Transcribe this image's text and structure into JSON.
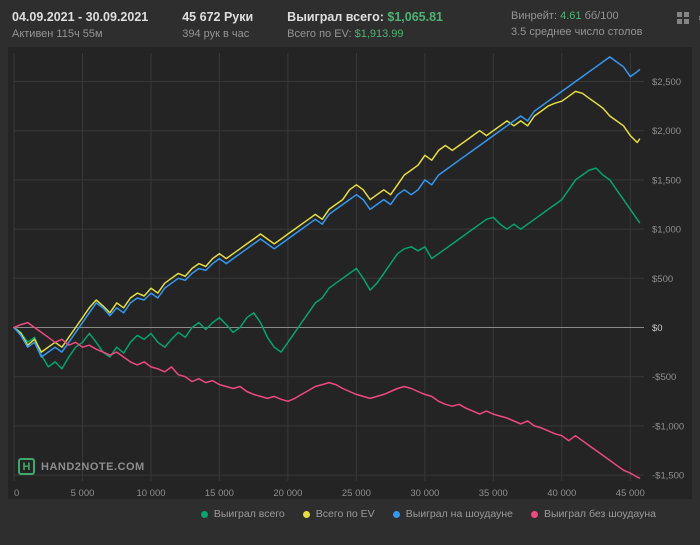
{
  "header": {
    "date_range": "04.09.2021 - 30.09.2021",
    "active_time": "Активен 115ч 55м",
    "hands": "45 672 Руки",
    "hands_per_hour": "394 рук в час",
    "won_label": "Выиграл всего:",
    "won_value": "$1,065.81",
    "ev_label": "Всего по EV:",
    "ev_value": "$1,913.99",
    "winrate_label": "Винрейт:",
    "winrate_value": "4.61",
    "winrate_unit": "бб/100",
    "avg_tables": "3.5 среднее число столов"
  },
  "icons": {
    "gear_glyph": "⚙"
  },
  "footer": {
    "logo_text": "HAND2NOTE.COM"
  },
  "colors": {
    "header_bg": "#2e2e2e",
    "chart_bg": "#242424",
    "accent_green": "#4db374"
  },
  "chart_data": {
    "type": "line",
    "title": "",
    "xlabel": "",
    "ylabel": "",
    "legend_position": "bottom",
    "grid": true,
    "grid_color": "#383838",
    "zero_line_color": "#8a8a8a",
    "xlim": [
      0,
      46000
    ],
    "ylim": [
      -1560,
      2790
    ],
    "x_ticks": [
      {
        "value": 0,
        "label": "0"
      },
      {
        "value": 5000,
        "label": "5 000"
      },
      {
        "value": 10000,
        "label": "10 000"
      },
      {
        "value": 15000,
        "label": "15 000"
      },
      {
        "value": 20000,
        "label": "20 000"
      },
      {
        "value": 25000,
        "label": "25 000"
      },
      {
        "value": 30000,
        "label": "30 000"
      },
      {
        "value": 35000,
        "label": "35 000"
      },
      {
        "value": 40000,
        "label": "40 000"
      },
      {
        "value": 45000,
        "label": "45 000"
      }
    ],
    "y_ticks": [
      {
        "value": 2500,
        "label": "$2,500"
      },
      {
        "value": 2000,
        "label": "$2,000"
      },
      {
        "value": 1500,
        "label": "$1,500"
      },
      {
        "value": 1000,
        "label": "$1,000"
      },
      {
        "value": 500,
        "label": "$500"
      },
      {
        "value": 0,
        "label": "$0"
      },
      {
        "value": -500,
        "label": "-$500"
      },
      {
        "value": -1000,
        "label": "-$1,000"
      },
      {
        "value": -1500,
        "label": "-$1,500"
      }
    ],
    "x": [
      0,
      500,
      1000,
      1500,
      2000,
      2500,
      3000,
      3500,
      4000,
      4500,
      5000,
      5500,
      6000,
      6500,
      7000,
      7500,
      8000,
      8500,
      9000,
      9500,
      10000,
      10500,
      11000,
      11500,
      12000,
      12500,
      13000,
      13500,
      14000,
      14500,
      15000,
      15500,
      16000,
      16500,
      17000,
      17500,
      18000,
      18500,
      19000,
      19500,
      20000,
      20500,
      21000,
      21500,
      22000,
      22500,
      23000,
      23500,
      24000,
      24500,
      25000,
      25500,
      26000,
      26500,
      27000,
      27500,
      28000,
      28500,
      29000,
      29500,
      30000,
      30500,
      31000,
      31500,
      32000,
      32500,
      33000,
      33500,
      34000,
      34500,
      35000,
      35500,
      36000,
      36500,
      37000,
      37500,
      38000,
      38500,
      39000,
      39500,
      40000,
      40500,
      41000,
      41500,
      42000,
      42500,
      43000,
      43500,
      44000,
      44500,
      45000,
      45500,
      45672
    ],
    "series": [
      {
        "name": "Выиграл всего",
        "color": "#00a56e",
        "final_value": 1065.81,
        "values": [
          0,
          -50,
          -150,
          -100,
          -280,
          -400,
          -350,
          -420,
          -300,
          -200,
          -150,
          -60,
          -150,
          -250,
          -300,
          -200,
          -260,
          -150,
          -80,
          -120,
          -60,
          -150,
          -200,
          -120,
          -50,
          -100,
          0,
          50,
          -20,
          50,
          100,
          30,
          -50,
          0,
          100,
          150,
          50,
          -100,
          -200,
          -250,
          -150,
          -50,
          50,
          150,
          250,
          300,
          400,
          450,
          500,
          550,
          600,
          500,
          380,
          450,
          550,
          650,
          750,
          800,
          820,
          780,
          820,
          700,
          750,
          800,
          850,
          900,
          950,
          1000,
          1050,
          1100,
          1120,
          1050,
          1000,
          1050,
          1000,
          1050,
          1100,
          1150,
          1200,
          1250,
          1300,
          1400,
          1500,
          1550,
          1600,
          1620,
          1550,
          1500,
          1400,
          1300,
          1200,
          1100,
          1066
        ]
      },
      {
        "name": "Всего по EV",
        "color": "#e3df3c",
        "final_value": 1913.99,
        "values": [
          0,
          -60,
          -180,
          -120,
          -250,
          -200,
          -150,
          -200,
          -100,
          0,
          100,
          200,
          280,
          220,
          150,
          250,
          200,
          300,
          350,
          320,
          400,
          350,
          450,
          500,
          550,
          520,
          600,
          650,
          620,
          700,
          750,
          700,
          750,
          800,
          850,
          900,
          950,
          900,
          850,
          900,
          950,
          1000,
          1050,
          1100,
          1150,
          1100,
          1200,
          1250,
          1300,
          1400,
          1450,
          1400,
          1300,
          1350,
          1400,
          1350,
          1450,
          1550,
          1600,
          1650,
          1750,
          1700,
          1800,
          1850,
          1800,
          1850,
          1900,
          1950,
          2000,
          1950,
          2000,
          2050,
          2100,
          2050,
          2100,
          2050,
          2150,
          2200,
          2250,
          2280,
          2300,
          2350,
          2400,
          2380,
          2330,
          2280,
          2230,
          2150,
          2100,
          2050,
          1950,
          1880,
          1914
        ]
      },
      {
        "name": "Выиграл на шоудауне",
        "color": "#3398f2",
        "values": [
          0,
          -80,
          -200,
          -150,
          -300,
          -250,
          -200,
          -250,
          -150,
          -50,
          50,
          150,
          250,
          200,
          120,
          200,
          150,
          250,
          300,
          280,
          350,
          300,
          400,
          450,
          500,
          480,
          550,
          600,
          580,
          650,
          700,
          650,
          700,
          750,
          800,
          850,
          900,
          850,
          800,
          850,
          900,
          950,
          1000,
          1050,
          1100,
          1050,
          1150,
          1200,
          1250,
          1300,
          1350,
          1300,
          1200,
          1250,
          1300,
          1250,
          1350,
          1400,
          1350,
          1400,
          1500,
          1450,
          1550,
          1600,
          1650,
          1700,
          1750,
          1800,
          1850,
          1900,
          1950,
          2000,
          2050,
          2100,
          2150,
          2100,
          2200,
          2250,
          2300,
          2350,
          2400,
          2450,
          2500,
          2550,
          2600,
          2650,
          2700,
          2750,
          2700,
          2650,
          2550,
          2600,
          2620
        ]
      },
      {
        "name": "Выиграл без шоудауна",
        "color": "#ef4980",
        "values": [
          0,
          30,
          50,
          0,
          -50,
          -100,
          -150,
          -120,
          -180,
          -150,
          -200,
          -180,
          -220,
          -250,
          -280,
          -250,
          -300,
          -350,
          -380,
          -350,
          -400,
          -420,
          -450,
          -400,
          -480,
          -500,
          -550,
          -520,
          -560,
          -540,
          -580,
          -600,
          -620,
          -600,
          -650,
          -680,
          -700,
          -720,
          -700,
          -730,
          -750,
          -720,
          -680,
          -640,
          -600,
          -580,
          -560,
          -580,
          -620,
          -650,
          -680,
          -700,
          -720,
          -700,
          -680,
          -650,
          -620,
          -600,
          -620,
          -650,
          -680,
          -700,
          -750,
          -780,
          -800,
          -780,
          -820,
          -850,
          -880,
          -850,
          -880,
          -900,
          -920,
          -950,
          -980,
          -950,
          -1000,
          -1020,
          -1050,
          -1080,
          -1100,
          -1150,
          -1100,
          -1150,
          -1200,
          -1250,
          -1300,
          -1350,
          -1400,
          -1450,
          -1480,
          -1520,
          -1531
        ]
      }
    ]
  }
}
